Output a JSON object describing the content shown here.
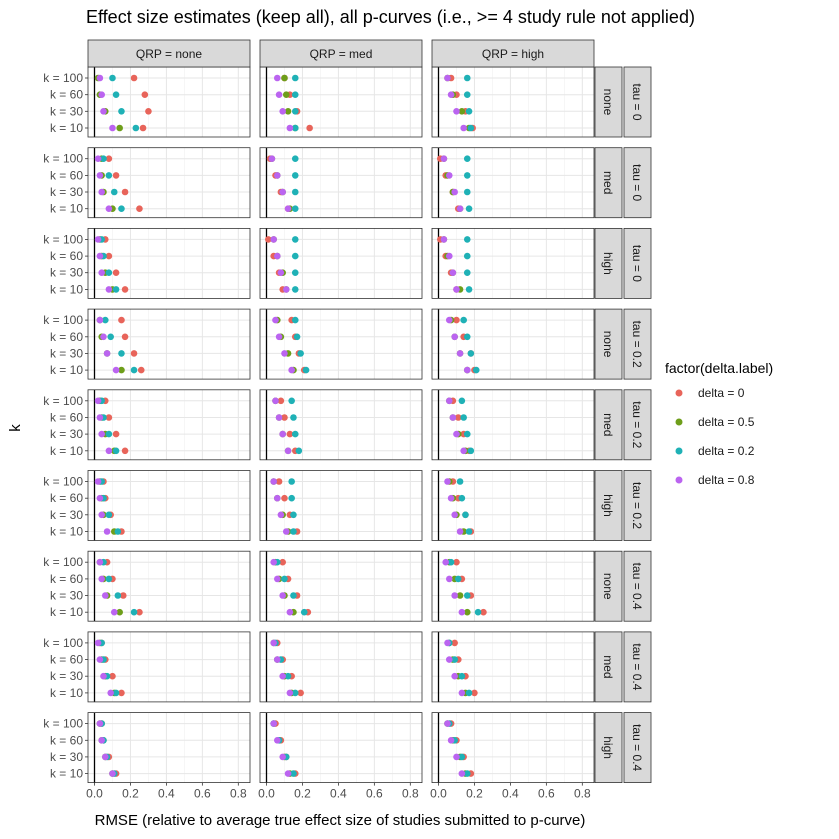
{
  "chart_data": {
    "type": "scatter",
    "title": "Effect size estimates (keep all), all p-curves (i.e., >= 4 study rule not applied)",
    "xlabel": "RMSE (relative to average true effect size of studies submitted to p-curve)",
    "ylabel": "k",
    "xlim": [
      0,
      0.84
    ],
    "x_ticks": [
      "0.0",
      "0.2",
      "0.4",
      "0.6",
      "0.8"
    ],
    "x_tick_values": [
      0,
      0.2,
      0.4,
      0.6,
      0.8
    ],
    "y_categories": [
      "k = 10",
      "k = 30",
      "k = 60",
      "k = 100"
    ],
    "vline_x": 0,
    "grid": true,
    "legend": {
      "title": "factor(delta.label)",
      "position": "right",
      "entries": [
        {
          "label": "delta = 0",
          "color": "#E8645A"
        },
        {
          "label": "delta = 0.5",
          "color": "#6E9E1A"
        },
        {
          "label": "delta = 0.2",
          "color": "#1FB1B6"
        },
        {
          "label": "delta = 0.8",
          "color": "#BB64F0"
        }
      ]
    },
    "facet_cols": [
      "QRP = none",
      "QRP = med",
      "QRP = high"
    ],
    "facet_rows": [
      {
        "inner": "none",
        "outer": "tau = 0"
      },
      {
        "inner": "med",
        "outer": "tau = 0"
      },
      {
        "inner": "high",
        "outer": "tau = 0"
      },
      {
        "inner": "none",
        "outer": "tau = 0.2"
      },
      {
        "inner": "med",
        "outer": "tau = 0.2"
      },
      {
        "inner": "high",
        "outer": "tau = 0.2"
      },
      {
        "inner": "none",
        "outer": "tau = 0.4"
      },
      {
        "inner": "med",
        "outer": "tau = 0.4"
      },
      {
        "inner": "high",
        "outer": "tau = 0.4"
      }
    ],
    "series_order": [
      "delta = 0",
      "delta = 0.5",
      "delta = 0.2",
      "delta = 0.8"
    ],
    "values_note_order": "panels[row][col][series][k] with k order = [k=10, k=30, k=60, k=100]",
    "panels": [
      [
        [
          [
            0.27,
            0.3,
            0.28,
            0.22
          ],
          [
            0.14,
            0.06,
            0.03,
            0.02
          ],
          [
            0.23,
            0.15,
            0.12,
            0.1
          ],
          [
            0.1,
            0.05,
            0.04,
            0.03
          ]
        ],
        [
          [
            0.24,
            0.17,
            0.13,
            0.1
          ],
          [
            0.16,
            0.12,
            0.11,
            0.1
          ],
          [
            0.16,
            0.16,
            0.16,
            0.16
          ],
          [
            0.13,
            0.09,
            0.07,
            0.06
          ]
        ],
        [
          [
            0.19,
            0.15,
            0.1,
            0.07
          ],
          [
            0.17,
            0.13,
            0.08,
            0.05
          ],
          [
            0.18,
            0.17,
            0.16,
            0.16
          ],
          [
            0.14,
            0.1,
            0.07,
            0.05
          ]
        ]
      ],
      [
        [
          [
            0.25,
            0.17,
            0.12,
            0.08
          ],
          [
            0.1,
            0.05,
            0.04,
            0.04
          ],
          [
            0.15,
            0.11,
            0.08,
            0.05
          ],
          [
            0.08,
            0.04,
            0.03,
            0.02
          ]
        ],
        [
          [
            0.12,
            0.08,
            0.05,
            0.02
          ],
          [
            0.13,
            0.09,
            0.06,
            0.03
          ],
          [
            0.16,
            0.16,
            0.16,
            0.16
          ],
          [
            0.12,
            0.09,
            0.06,
            0.03
          ]
        ],
        [
          [
            0.11,
            0.08,
            0.04,
            0.01
          ],
          [
            0.12,
            0.08,
            0.05,
            0.03
          ],
          [
            0.17,
            0.16,
            0.16,
            0.16
          ],
          [
            0.12,
            0.09,
            0.06,
            0.03
          ]
        ]
      ],
      [
        [
          [
            0.17,
            0.12,
            0.08,
            0.06
          ],
          [
            0.1,
            0.06,
            0.04,
            0.03
          ],
          [
            0.12,
            0.08,
            0.05,
            0.04
          ],
          [
            0.08,
            0.04,
            0.03,
            0.02
          ]
        ],
        [
          [
            0.09,
            0.07,
            0.04,
            0.01
          ],
          [
            0.11,
            0.09,
            0.06,
            0.04
          ],
          [
            0.16,
            0.16,
            0.16,
            0.16
          ],
          [
            0.11,
            0.08,
            0.06,
            0.04
          ]
        ],
        [
          [
            0.1,
            0.07,
            0.04,
            0.01
          ],
          [
            0.12,
            0.08,
            0.05,
            0.03
          ],
          [
            0.17,
            0.16,
            0.16,
            0.16
          ],
          [
            0.1,
            0.08,
            0.06,
            0.03
          ]
        ]
      ],
      [
        [
          [
            0.26,
            0.22,
            0.17,
            0.15
          ],
          [
            0.15,
            0.07,
            0.04,
            0.03
          ],
          [
            0.22,
            0.15,
            0.09,
            0.06
          ],
          [
            0.12,
            0.07,
            0.05,
            0.03
          ]
        ],
        [
          [
            0.21,
            0.18,
            0.16,
            0.14
          ],
          [
            0.15,
            0.12,
            0.08,
            0.06
          ],
          [
            0.22,
            0.19,
            0.17,
            0.16
          ],
          [
            0.14,
            0.1,
            0.07,
            0.05
          ]
        ],
        [
          [
            0.2,
            0.18,
            0.14,
            0.1
          ],
          [
            0.16,
            0.12,
            0.09,
            0.07
          ],
          [
            0.21,
            0.18,
            0.16,
            0.14
          ],
          [
            0.16,
            0.12,
            0.09,
            0.06
          ]
        ]
      ],
      [
        [
          [
            0.17,
            0.12,
            0.08,
            0.06
          ],
          [
            0.11,
            0.06,
            0.04,
            0.03
          ],
          [
            0.12,
            0.08,
            0.05,
            0.04
          ],
          [
            0.08,
            0.04,
            0.03,
            0.02
          ]
        ],
        [
          [
            0.16,
            0.13,
            0.1,
            0.08
          ],
          [
            0.12,
            0.09,
            0.07,
            0.05
          ],
          [
            0.18,
            0.16,
            0.15,
            0.14
          ],
          [
            0.12,
            0.09,
            0.07,
            0.05
          ]
        ],
        [
          [
            0.17,
            0.14,
            0.11,
            0.08
          ],
          [
            0.15,
            0.11,
            0.08,
            0.06
          ],
          [
            0.18,
            0.16,
            0.14,
            0.13
          ],
          [
            0.14,
            0.1,
            0.08,
            0.06
          ]
        ]
      ],
      [
        [
          [
            0.15,
            0.09,
            0.06,
            0.05
          ],
          [
            0.11,
            0.05,
            0.04,
            0.03
          ],
          [
            0.13,
            0.08,
            0.05,
            0.04
          ],
          [
            0.07,
            0.04,
            0.03,
            0.02
          ]
        ],
        [
          [
            0.17,
            0.13,
            0.1,
            0.07
          ],
          [
            0.12,
            0.09,
            0.06,
            0.04
          ],
          [
            0.15,
            0.15,
            0.14,
            0.14
          ],
          [
            0.11,
            0.08,
            0.06,
            0.04
          ]
        ],
        [
          [
            0.18,
            0.15,
            0.11,
            0.08
          ],
          [
            0.14,
            0.1,
            0.08,
            0.06
          ],
          [
            0.17,
            0.15,
            0.13,
            0.12
          ],
          [
            0.12,
            0.09,
            0.07,
            0.05
          ]
        ]
      ],
      [
        [
          [
            0.25,
            0.16,
            0.1,
            0.07
          ],
          [
            0.14,
            0.07,
            0.05,
            0.03
          ],
          [
            0.22,
            0.13,
            0.08,
            0.05
          ],
          [
            0.11,
            0.06,
            0.04,
            0.03
          ]
        ],
        [
          [
            0.23,
            0.17,
            0.12,
            0.09
          ],
          [
            0.15,
            0.1,
            0.07,
            0.05
          ],
          [
            0.21,
            0.15,
            0.1,
            0.06
          ],
          [
            0.13,
            0.09,
            0.06,
            0.04
          ]
        ],
        [
          [
            0.25,
            0.18,
            0.13,
            0.1
          ],
          [
            0.16,
            0.12,
            0.09,
            0.06
          ],
          [
            0.22,
            0.16,
            0.11,
            0.07
          ],
          [
            0.13,
            0.09,
            0.06,
            0.04
          ]
        ]
      ],
      [
        [
          [
            0.15,
            0.1,
            0.06,
            0.04
          ],
          [
            0.11,
            0.06,
            0.04,
            0.03
          ],
          [
            0.12,
            0.07,
            0.05,
            0.04
          ],
          [
            0.09,
            0.05,
            0.03,
            0.02
          ]
        ],
        [
          [
            0.19,
            0.14,
            0.09,
            0.06
          ],
          [
            0.14,
            0.1,
            0.06,
            0.04
          ],
          [
            0.16,
            0.12,
            0.08,
            0.05
          ],
          [
            0.13,
            0.09,
            0.06,
            0.04
          ]
        ],
        [
          [
            0.2,
            0.15,
            0.11,
            0.09
          ],
          [
            0.15,
            0.11,
            0.08,
            0.06
          ],
          [
            0.17,
            0.13,
            0.09,
            0.06
          ],
          [
            0.13,
            0.09,
            0.06,
            0.05
          ]
        ]
      ],
      [
        [
          [
            0.12,
            0.08,
            0.05,
            0.04
          ],
          [
            0.1,
            0.06,
            0.04,
            0.03
          ],
          [
            0.11,
            0.07,
            0.05,
            0.04
          ],
          [
            0.1,
            0.06,
            0.04,
            0.03
          ]
        ],
        [
          [
            0.16,
            0.11,
            0.08,
            0.05
          ],
          [
            0.13,
            0.1,
            0.07,
            0.04
          ],
          [
            0.15,
            0.11,
            0.07,
            0.04
          ],
          [
            0.12,
            0.09,
            0.06,
            0.04
          ]
        ],
        [
          [
            0.18,
            0.14,
            0.1,
            0.07
          ],
          [
            0.15,
            0.12,
            0.08,
            0.05
          ],
          [
            0.16,
            0.13,
            0.09,
            0.06
          ],
          [
            0.13,
            0.1,
            0.07,
            0.05
          ]
        ]
      ]
    ]
  }
}
